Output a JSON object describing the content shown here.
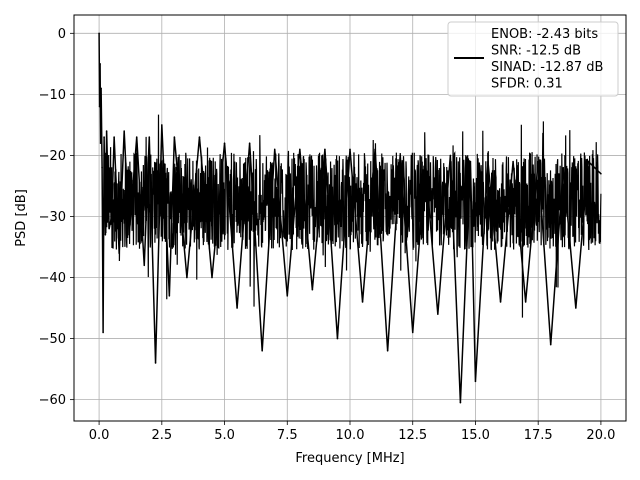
{
  "chart_data": {
    "type": "line",
    "title": "",
    "xlabel": "Frequency [MHz]",
    "ylabel": "PSD [dB]",
    "xlim": [
      -1.0,
      21.0
    ],
    "ylim": [
      -63.5,
      3.0
    ],
    "xticks": [
      0.0,
      2.5,
      5.0,
      7.5,
      10.0,
      12.5,
      15.0,
      17.5,
      20.0
    ],
    "xtick_labels": [
      "0.0",
      "2.5",
      "5.0",
      "7.5",
      "10.0",
      "12.5",
      "15.0",
      "17.5",
      "20.0"
    ],
    "yticks": [
      0,
      -10,
      -20,
      -30,
      -40,
      -50,
      -60
    ],
    "ytick_labels": [
      "0",
      "−10",
      "−20",
      "−30",
      "−40",
      "−50",
      "−60"
    ],
    "grid": true,
    "legend_position": "top-right",
    "legend_lines": [
      "ENOB: -2.43 bits",
      "SNR: -12.5 dB",
      "SINAD: -12.87 dB",
      "SFDR: 0.31"
    ],
    "series": [
      {
        "color": "#000000",
        "x": [
          0.0,
          0.02,
          0.04,
          0.06,
          0.08,
          0.12,
          0.16,
          0.2,
          0.25,
          0.3,
          0.4,
          0.5,
          0.6,
          0.8,
          1.0,
          1.2,
          1.5,
          1.8,
          2.0,
          2.25,
          2.5,
          2.8,
          3.0,
          3.5,
          4.0,
          4.5,
          5.0,
          5.5,
          6.0,
          6.5,
          7.0,
          7.5,
          8.0,
          8.5,
          9.0,
          9.5,
          10.0,
          10.5,
          11.0,
          11.5,
          12.0,
          12.5,
          13.0,
          13.5,
          14.0,
          14.4,
          14.8,
          15.0,
          15.5,
          16.0,
          16.5,
          17.0,
          17.5,
          18.0,
          18.5,
          19.0,
          19.5,
          20.0
        ],
        "y": [
          0.0,
          -12.0,
          -5.0,
          -18.0,
          -9.0,
          -22.0,
          -49.0,
          -17.0,
          -33.0,
          -16.0,
          -32.0,
          -30.0,
          -17.0,
          -36.0,
          -16.0,
          -33.0,
          -17.0,
          -38.0,
          -17.0,
          -54.0,
          -15.0,
          -43.0,
          -17.0,
          -40.0,
          -17.0,
          -40.0,
          -18.0,
          -45.0,
          -18.0,
          -52.0,
          -19.0,
          -43.0,
          -19.0,
          -42.0,
          -19.0,
          -50.0,
          -19.0,
          -44.0,
          -19.0,
          -52.0,
          -20.0,
          -49.0,
          -21.0,
          -46.0,
          -20.0,
          -60.5,
          -21.0,
          -57.0,
          -21.0,
          -44.0,
          -21.0,
          -44.0,
          -21.0,
          -51.0,
          -22.0,
          -45.0,
          -21.0,
          -23.0
        ]
      }
    ]
  }
}
